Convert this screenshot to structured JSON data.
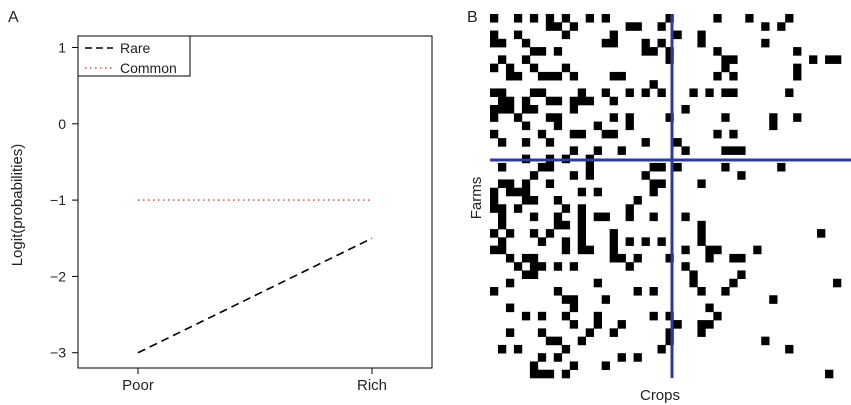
{
  "chart_data": [
    {
      "panel_label": "A",
      "type": "line",
      "x": [
        "Poor",
        "Rich"
      ],
      "series": [
        {
          "name": "Rare",
          "values": [
            -3,
            -1.5
          ],
          "color": "#000000",
          "dash": "dashed"
        },
        {
          "name": "Common",
          "values": [
            -1,
            -1
          ],
          "color": "#e8543e",
          "dash": "dotted"
        }
      ],
      "yticks": [
        1,
        0,
        -1,
        -2,
        -3
      ],
      "ytick_labels": [
        "1",
        "0",
        "−1",
        "−2",
        "−3"
      ],
      "ylim": [
        -3.2,
        1.15
      ],
      "xlabel": "",
      "ylabel": "Logit(probabilities)",
      "legend_position": "top-left",
      "grid": false
    },
    {
      "panel_label": "B",
      "type": "heatmap",
      "xlabel": "Crops",
      "ylabel": "Farms",
      "rows": 44,
      "cols": 44,
      "fill_color": "#000000",
      "divider_color": "#2d3c9a",
      "divider_after_col": 22,
      "divider_after_row": 17,
      "occupancy": [
        0.46,
        0.42,
        0.4,
        0.38,
        0.37,
        0.35,
        0.34,
        0.33,
        0.32,
        0.31,
        0.3,
        0.29,
        0.28,
        0.27,
        0.26,
        0.25,
        0.24,
        0.24,
        0.23,
        0.22,
        0.21,
        0.2,
        0.2,
        0.19,
        0.18,
        0.17,
        0.17,
        0.16,
        0.15,
        0.14,
        0.14,
        0.13,
        0.12,
        0.12,
        0.11,
        0.1,
        0.1,
        0.09,
        0.09,
        0.08,
        0.08,
        0.07,
        0.07,
        0.06
      ]
    }
  ]
}
